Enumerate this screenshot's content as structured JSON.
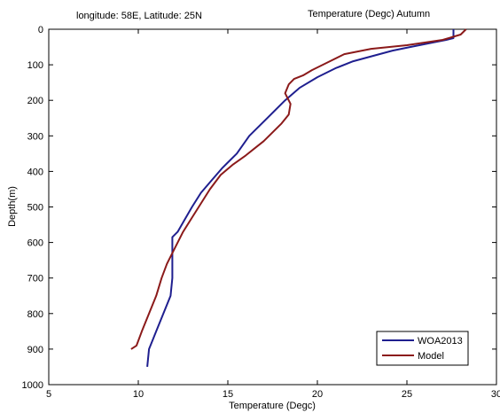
{
  "chart_data": {
    "type": "line",
    "header_left": "longitude: 58E, Latitude: 25N",
    "title": "Temperature (Degc)  Autumn",
    "xlabel": "Temperature (Degc)",
    "ylabel": "Depth(m)",
    "xlim": [
      5,
      30
    ],
    "ylim": [
      0,
      1000
    ],
    "y_inverted": true,
    "x_ticks": [
      5,
      10,
      15,
      20,
      25,
      30
    ],
    "y_ticks": [
      0,
      100,
      200,
      300,
      400,
      500,
      600,
      700,
      800,
      900,
      1000
    ],
    "grid": false,
    "legend_position": "bottom-right",
    "series": [
      {
        "name": "WOA2013",
        "color": "#1f1f8f",
        "temperature": [
          27.6,
          27.6,
          27.2,
          26.5,
          25.2,
          24.2,
          23.1,
          22.0,
          21.0,
          20.0,
          19.0,
          18.2,
          17.2,
          16.2,
          15.5,
          14.7,
          14.1,
          13.5,
          13.0,
          12.6,
          12.2,
          11.9,
          11.9,
          11.9,
          11.9,
          11.8,
          11.4,
          11.0,
          10.6,
          10.5
        ],
        "depth": [
          0,
          25,
          30,
          37,
          50,
          60,
          75,
          90,
          110,
          135,
          165,
          200,
          250,
          300,
          350,
          390,
          425,
          460,
          500,
          535,
          570,
          585,
          600,
          650,
          700,
          750,
          800,
          850,
          900,
          950
        ]
      },
      {
        "name": "Model",
        "color": "#8b1a1a",
        "temperature": [
          28.3,
          28.0,
          27.0,
          25.0,
          23.0,
          21.5,
          20.5,
          19.7,
          19.2,
          18.7,
          18.4,
          18.2,
          18.5,
          18.4,
          18.0,
          17.5,
          17.0,
          16.5,
          16.0,
          15.3,
          14.6,
          14.0,
          13.5,
          13.0,
          12.5,
          12.0,
          11.6,
          11.3,
          11.0,
          10.6,
          10.2,
          9.9,
          9.6
        ],
        "depth": [
          0,
          15,
          30,
          45,
          55,
          70,
          95,
          115,
          130,
          140,
          155,
          180,
          210,
          240,
          265,
          290,
          315,
          335,
          355,
          380,
          410,
          450,
          490,
          530,
          570,
          620,
          660,
          700,
          750,
          800,
          850,
          890,
          900
        ]
      }
    ]
  }
}
